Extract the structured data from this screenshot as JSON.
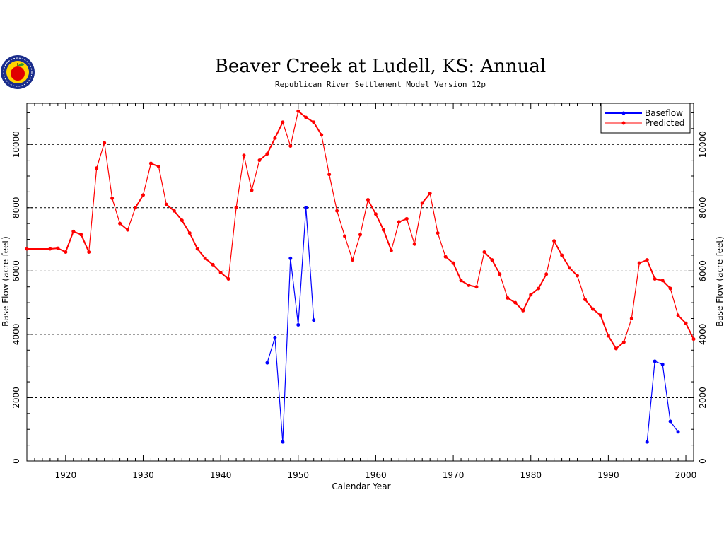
{
  "chart_data": {
    "type": "line",
    "title": "Beaver Creek at Ludell, KS: Annual",
    "subtitle": "Republican River Settlement Model Version 12p",
    "xlabel": "Calendar Year",
    "ylabel": "Base Flow (acre-feet)",
    "xlim": [
      1915,
      2001
    ],
    "ylim": [
      0,
      11300
    ],
    "x_ticks": [
      1920,
      1930,
      1940,
      1950,
      1960,
      1970,
      1980,
      1990,
      2000
    ],
    "y_ticks": [
      0,
      2000,
      4000,
      6000,
      8000,
      10000
    ],
    "grid": "horizontal-dashed",
    "legend_position": "top-right",
    "series": [
      {
        "name": "Baseflow",
        "color": "#0000ff",
        "points": [
          {
            "x": 1946,
            "y": 3100
          },
          {
            "x": 1947,
            "y": 3900
          },
          {
            "x": 1948,
            "y": 600
          },
          {
            "x": 1949,
            "y": 6400
          },
          {
            "x": 1950,
            "y": 4300
          },
          {
            "x": 1951,
            "y": 8000
          },
          {
            "x": 1952,
            "y": 4450
          },
          {
            "x": 1995,
            "y": 600
          },
          {
            "x": 1996,
            "y": 3150
          },
          {
            "x": 1997,
            "y": 3050
          },
          {
            "x": 1998,
            "y": 1250
          },
          {
            "x": 1999,
            "y": 920
          }
        ],
        "segments": [
          [
            0,
            6
          ],
          [
            7,
            11
          ]
        ]
      },
      {
        "name": "Predicted",
        "color": "#ff0000",
        "points": [
          {
            "x": 1915,
            "y": 6700
          },
          {
            "x": 1918,
            "y": 6700
          },
          {
            "x": 1919,
            "y": 6720
          },
          {
            "x": 1920,
            "y": 6600
          },
          {
            "x": 1921,
            "y": 7250
          },
          {
            "x": 1922,
            "y": 7150
          },
          {
            "x": 1923,
            "y": 6600
          },
          {
            "x": 1924,
            "y": 9250
          },
          {
            "x": 1925,
            "y": 10050
          },
          {
            "x": 1926,
            "y": 8300
          },
          {
            "x": 1927,
            "y": 7500
          },
          {
            "x": 1928,
            "y": 7300
          },
          {
            "x": 1929,
            "y": 8000
          },
          {
            "x": 1930,
            "y": 8400
          },
          {
            "x": 1931,
            "y": 9400
          },
          {
            "x": 1932,
            "y": 9300
          },
          {
            "x": 1933,
            "y": 8100
          },
          {
            "x": 1934,
            "y": 7900
          },
          {
            "x": 1935,
            "y": 7600
          },
          {
            "x": 1936,
            "y": 7200
          },
          {
            "x": 1937,
            "y": 6700
          },
          {
            "x": 1938,
            "y": 6400
          },
          {
            "x": 1939,
            "y": 6200
          },
          {
            "x": 1940,
            "y": 5950
          },
          {
            "x": 1941,
            "y": 5750
          },
          {
            "x": 1942,
            "y": 8000
          },
          {
            "x": 1943,
            "y": 9650
          },
          {
            "x": 1944,
            "y": 8550
          },
          {
            "x": 1945,
            "y": 9500
          },
          {
            "x": 1946,
            "y": 9700
          },
          {
            "x": 1947,
            "y": 10200
          },
          {
            "x": 1948,
            "y": 10700
          },
          {
            "x": 1949,
            "y": 9950
          },
          {
            "x": 1950,
            "y": 11050
          },
          {
            "x": 1951,
            "y": 10850
          },
          {
            "x": 1952,
            "y": 10700
          },
          {
            "x": 1953,
            "y": 10300
          },
          {
            "x": 1954,
            "y": 9050
          },
          {
            "x": 1955,
            "y": 7900
          },
          {
            "x": 1956,
            "y": 7100
          },
          {
            "x": 1957,
            "y": 6350
          },
          {
            "x": 1958,
            "y": 7150
          },
          {
            "x": 1959,
            "y": 8250
          },
          {
            "x": 1960,
            "y": 7800
          },
          {
            "x": 1961,
            "y": 7300
          },
          {
            "x": 1962,
            "y": 6650
          },
          {
            "x": 1963,
            "y": 7550
          },
          {
            "x": 1964,
            "y": 7650
          },
          {
            "x": 1965,
            "y": 6850
          },
          {
            "x": 1966,
            "y": 8150
          },
          {
            "x": 1967,
            "y": 8450
          },
          {
            "x": 1968,
            "y": 7200
          },
          {
            "x": 1969,
            "y": 6450
          },
          {
            "x": 1970,
            "y": 6250
          },
          {
            "x": 1971,
            "y": 5700
          },
          {
            "x": 1972,
            "y": 5550
          },
          {
            "x": 1973,
            "y": 5500
          },
          {
            "x": 1974,
            "y": 6600
          },
          {
            "x": 1975,
            "y": 6350
          },
          {
            "x": 1976,
            "y": 5900
          },
          {
            "x": 1977,
            "y": 5150
          },
          {
            "x": 1978,
            "y": 5000
          },
          {
            "x": 1979,
            "y": 4750
          },
          {
            "x": 1980,
            "y": 5250
          },
          {
            "x": 1981,
            "y": 5450
          },
          {
            "x": 1982,
            "y": 5900
          },
          {
            "x": 1983,
            "y": 6950
          },
          {
            "x": 1984,
            "y": 6500
          },
          {
            "x": 1985,
            "y": 6100
          },
          {
            "x": 1986,
            "y": 5850
          },
          {
            "x": 1987,
            "y": 5100
          },
          {
            "x": 1988,
            "y": 4800
          },
          {
            "x": 1989,
            "y": 4600
          },
          {
            "x": 1990,
            "y": 3950
          },
          {
            "x": 1991,
            "y": 3550
          },
          {
            "x": 1992,
            "y": 3750
          },
          {
            "x": 1993,
            "y": 4500
          },
          {
            "x": 1994,
            "y": 6250
          },
          {
            "x": 1995,
            "y": 6350
          },
          {
            "x": 1996,
            "y": 5750
          },
          {
            "x": 1997,
            "y": 5700
          },
          {
            "x": 1998,
            "y": 5450
          },
          {
            "x": 1999,
            "y": 4600
          },
          {
            "x": 2000,
            "y": 4350
          },
          {
            "x": 2001,
            "y": 3850
          }
        ],
        "segments": [
          [
            0,
            84
          ]
        ]
      }
    ]
  },
  "logo": {
    "name": "apple-seal-logo",
    "colors": [
      "#1a2d8c",
      "#ffd400",
      "#e00000",
      "#2e9a2e"
    ]
  }
}
